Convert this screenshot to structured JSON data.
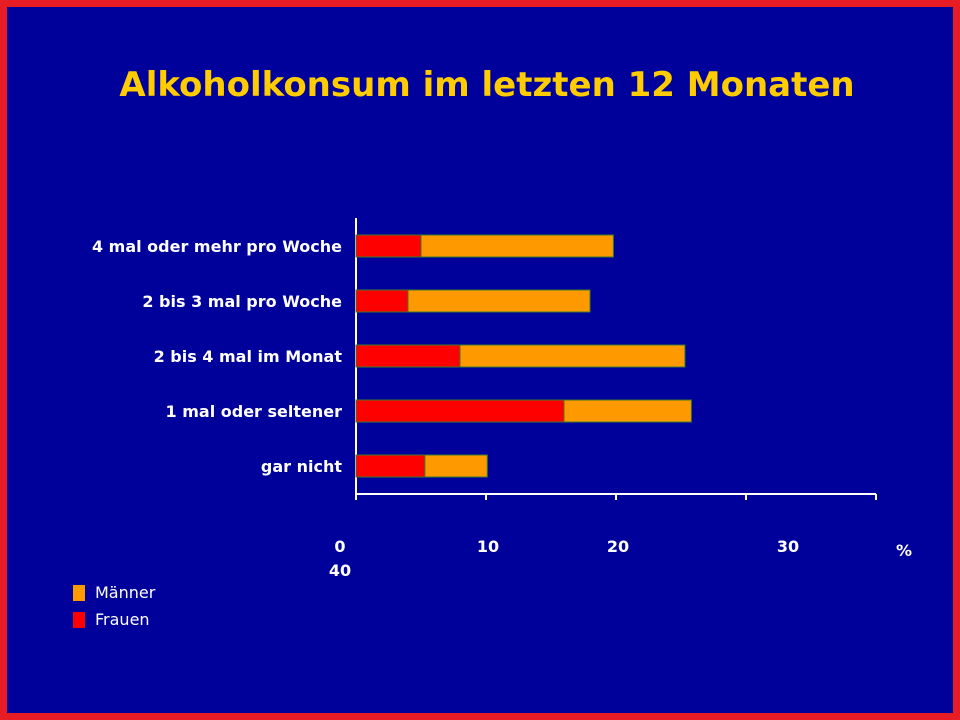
{
  "chart_data": {
    "type": "bar",
    "orientation": "horizontal",
    "stacked": true,
    "title": "Alkoholkonsum im letzten 12 Monaten",
    "categories": [
      "4 mal oder mehr pro Woche",
      "2 bis 3 mal pro Woche",
      "2 bis 4 mal im Monat",
      "1 mal oder seltener",
      "gar nicht"
    ],
    "series": [
      {
        "name": "Frauen",
        "color": "#ff0000",
        "values": [
          5,
          4,
          8,
          16,
          5.3
        ]
      },
      {
        "name": "Männer",
        "color": "#ff9900",
        "values": [
          14.8,
          14,
          17.3,
          9.8,
          4.8
        ]
      }
    ],
    "x_ticks": [
      "0",
      "10",
      "20",
      "30",
      "40"
    ],
    "x_unit": "%",
    "xlim": [
      0,
      40
    ],
    "legend_position": "bottom-left",
    "grid": false
  },
  "legend": [
    {
      "label": "Männer",
      "color": "#ff9900"
    },
    {
      "label": "Frauen",
      "color": "#ff0000"
    }
  ]
}
